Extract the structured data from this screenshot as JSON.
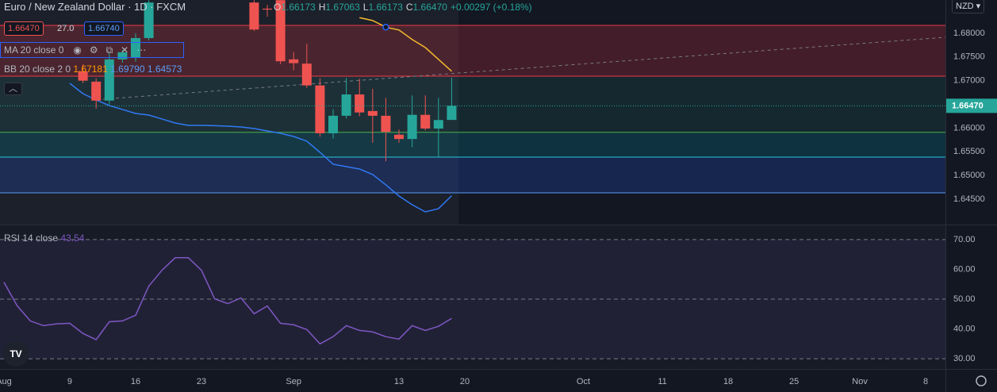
{
  "header": {
    "symbol": "Euro / New Zealand Dollar",
    "interval": "1D",
    "source": "FXCM",
    "ohlc": [
      {
        "key": "O",
        "value": "1.66173"
      },
      {
        "key": "H",
        "value": "1.67063"
      },
      {
        "key": "L",
        "value": "1.66173"
      },
      {
        "key": "C",
        "value": "1.66470"
      }
    ],
    "change": "+0.00297 (+0.18%)",
    "sell": "1.66470",
    "spread": "27.0",
    "buy": "1.66740",
    "currency": "NZD"
  },
  "chart_data": [
    {
      "type": "candlestick",
      "x": [
        1,
        2,
        3,
        4,
        5,
        6,
        14,
        15,
        16,
        17,
        18,
        19,
        20,
        21,
        22,
        23,
        24,
        25,
        26,
        27,
        28,
        29
      ],
      "open": [
        1.672,
        1.6698,
        1.6658,
        1.6745,
        1.6748,
        1.679,
        1.6865,
        1.6852,
        1.687,
        1.6745,
        1.6736,
        1.669,
        1.6589,
        1.6626,
        1.6671,
        1.6636,
        1.6626,
        1.6586,
        1.6577,
        1.6628,
        1.6599,
        1.66173
      ],
      "high": [
        1.6735,
        1.6705,
        1.676,
        1.6765,
        1.68,
        1.687,
        1.687,
        1.686,
        1.687,
        1.676,
        1.6778,
        1.6705,
        1.664,
        1.6706,
        1.6704,
        1.6683,
        1.6664,
        1.6597,
        1.6669,
        1.6669,
        1.6664,
        1.67063
      ],
      "low": [
        1.6695,
        1.6641,
        1.665,
        1.6738,
        1.674,
        1.6785,
        1.6805,
        1.6835,
        1.6735,
        1.6722,
        1.6685,
        1.6582,
        1.6578,
        1.662,
        1.6625,
        1.6569,
        1.653,
        1.6569,
        1.656,
        1.6595,
        1.6539,
        1.66173
      ],
      "close": [
        1.67,
        1.6658,
        1.6745,
        1.676,
        1.679,
        1.6865,
        1.6808,
        1.685,
        1.6741,
        1.6737,
        1.669,
        1.6589,
        1.6626,
        1.6671,
        1.6633,
        1.6626,
        1.6592,
        1.6577,
        1.6628,
        1.6599,
        1.6617,
        1.6647
      ],
      "up_color": "#26a69a",
      "down_color": "#ef5350",
      "series": [
        {
          "name": "MA 20 close 0",
          "color": "#f5b82e",
          "x": [
            22,
            23,
            24,
            25,
            26,
            27,
            28,
            29
          ],
          "values": [
            1.6833,
            1.6827,
            1.6813,
            1.6807,
            1.6787,
            1.677,
            1.6745,
            1.672
          ]
        },
        {
          "name": "BB 20 close 2 0",
          "color": "#3179f5",
          "x": [
            0,
            1,
            2,
            3,
            4,
            5,
            6,
            7,
            8,
            9,
            10,
            11,
            12,
            13,
            14,
            15,
            16,
            17,
            18,
            19,
            20,
            21,
            22,
            23,
            24,
            25,
            26,
            27,
            28,
            29
          ],
          "values": [
            1.66945,
            1.66727,
            1.66593,
            1.66476,
            1.66393,
            1.66309,
            1.66275,
            1.66192,
            1.66108,
            1.66058,
            1.66058,
            1.6605,
            1.66041,
            1.66024,
            1.65991,
            1.6594,
            1.6589,
            1.65823,
            1.65723,
            1.65488,
            1.65237,
            1.65187,
            1.65137,
            1.6502,
            1.64802,
            1.64567,
            1.64383,
            1.64232,
            1.643,
            1.64573
          ]
        }
      ],
      "bb_legend": [
        "1.67181",
        "1.69790"
      ],
      "levels": [
        {
          "value": 1.68167,
          "color": "#f23645",
          "fill": "rgba(242,54,69,0.22)"
        },
        {
          "value": 1.67096,
          "color": "#f23645",
          "fill": "rgba(38,166,154,0.12)"
        },
        {
          "value": 1.6591,
          "color": "#4caf50",
          "fill": "rgba(0,151,167,0.22)"
        },
        {
          "value": 1.65388,
          "color": "#26c6da",
          "fill": "rgba(41,98,255,0.2)"
        },
        {
          "value": 1.64634,
          "color": "#5b9cf6",
          "fill": null
        }
      ],
      "last_price": {
        "value": 1.6647,
        "label": "1.66470"
      },
      "xlim": [
        -5.3,
        66.5
      ],
      "xticks": [
        {
          "value": -5,
          "label": "Aug"
        },
        {
          "value": 0,
          "label": "9"
        },
        {
          "value": 5,
          "label": "16"
        },
        {
          "value": 10,
          "label": "23"
        },
        {
          "value": 17,
          "label": "Sep"
        },
        {
          "value": 25,
          "label": "13"
        },
        {
          "value": 30,
          "label": "20"
        },
        {
          "value": 39,
          "label": "Oct"
        },
        {
          "value": 45,
          "label": "11"
        },
        {
          "value": 50,
          "label": "18"
        },
        {
          "value": 55,
          "label": "25"
        },
        {
          "value": 60,
          "label": "Nov"
        },
        {
          "value": 65,
          "label": "8"
        }
      ],
      "ylim": [
        1.63964,
        1.68703
      ],
      "yticks": [
        {
          "value": 1.68,
          "label": "1.68000"
        },
        {
          "value": 1.675,
          "label": "1.67500"
        },
        {
          "value": 1.67,
          "label": "1.67000"
        },
        {
          "value": 1.66,
          "label": "1.66000"
        },
        {
          "value": 1.655,
          "label": "1.65500"
        },
        {
          "value": 1.65,
          "label": "1.65000"
        },
        {
          "value": 1.645,
          "label": "1.64500"
        }
      ]
    },
    {
      "type": "line",
      "series": [
        {
          "name": "RSI 14 close",
          "color": "#7e57c2",
          "x": [
            -5,
            -4,
            -3,
            -2,
            -1,
            0,
            1,
            2,
            3,
            4,
            5,
            6,
            7,
            8,
            9,
            10,
            11,
            12,
            13,
            14,
            15,
            16,
            17,
            18,
            19,
            20,
            21,
            22,
            23,
            24,
            25,
            26,
            27,
            28,
            29
          ],
          "values": [
            55.7,
            47.8,
            42.7,
            41.1,
            41.7,
            41.9,
            38.5,
            36.4,
            42.4,
            42.7,
            44.6,
            54.4,
            59.7,
            63.9,
            63.9,
            59.7,
            50.1,
            48.5,
            50.4,
            45.1,
            47.7,
            41.9,
            41.4,
            39.8,
            35.0,
            37.4,
            41.1,
            39.5,
            39.0,
            37.4,
            36.6,
            41.1,
            39.5,
            40.9,
            43.54
          ]
        }
      ],
      "xlim": [
        -5.3,
        66.5
      ],
      "ylim": [
        26.56,
        74.77
      ],
      "yticks": [
        {
          "value": 70,
          "label": "70.00"
        },
        {
          "value": 60,
          "label": "60.00"
        },
        {
          "value": 50,
          "label": "50.00"
        },
        {
          "value": 40,
          "label": "40.00"
        },
        {
          "value": 30,
          "label": "30.00"
        }
      ],
      "dashed": [
        70,
        50,
        30
      ]
    }
  ]
}
